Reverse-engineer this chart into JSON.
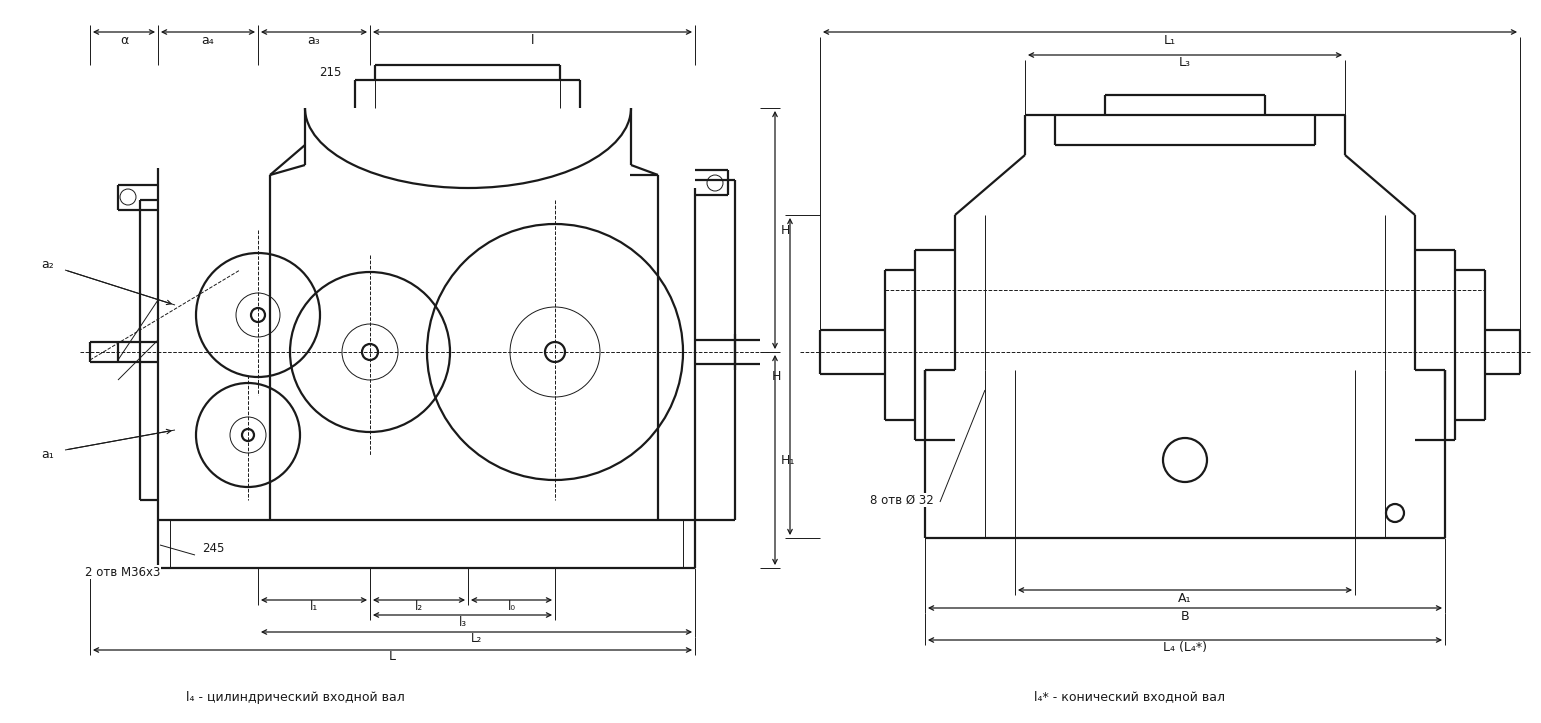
{
  "bg_color": "#ffffff",
  "line_color": "#1a1a1a",
  "lw_main": 1.6,
  "lw_thin": 0.7,
  "fig_w": 15.41,
  "fig_h": 7.23,
  "labels": {
    "alpha": "α",
    "a4": "a₄",
    "a3": "a₃",
    "l": "l",
    "a2": "a₂",
    "a1": "a₁",
    "H": "H",
    "H1": "H₁",
    "l0": "l₀",
    "l1": "l₁",
    "l2": "l₂",
    "l3": "l₃",
    "L": "L",
    "L2": "L₂",
    "L1": "L₁",
    "L3": "L₃",
    "L4": "L₄ (L₄*)",
    "A1": "A₁",
    "B": "B",
    "num215": "215",
    "num245": "245",
    "otv1": "2 отв M36ї3",
    "otv2": "8 отв Ø 32",
    "caption_left": "l₄ - цилиндрический входной вал",
    "caption_right": "l₄* - конический входной вал"
  }
}
